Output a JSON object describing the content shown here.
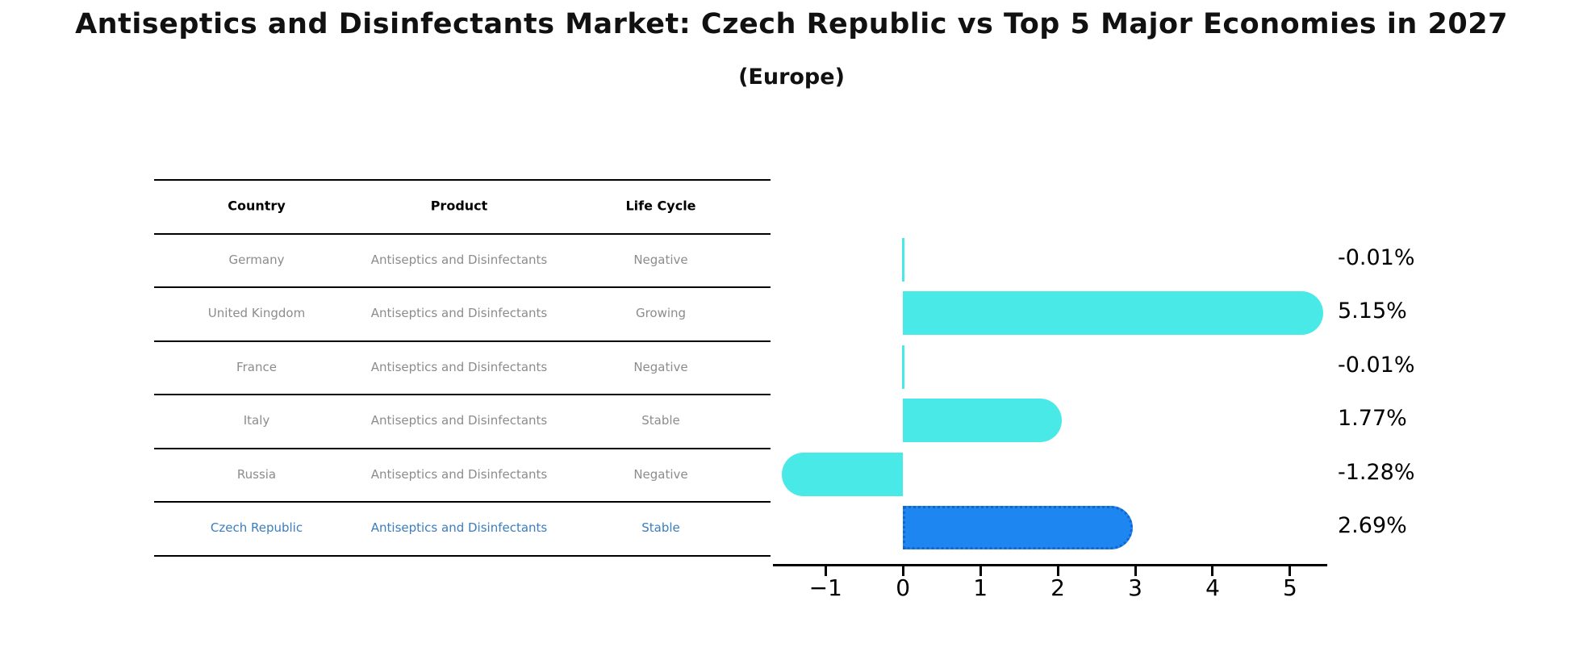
{
  "title": "Antiseptics and Disinfectants Market: Czech Republic vs Top 5 Major Economies in 2027",
  "subtitle": "(Europe)",
  "table": {
    "headers": [
      "Country",
      "Product",
      "Life Cycle"
    ],
    "rows": [
      [
        "Germany",
        "Antiseptics and Disinfectants",
        "Negative"
      ],
      [
        "United Kingdom",
        "Antiseptics and Disinfectants",
        "Growing"
      ],
      [
        "France",
        "Antiseptics and Disinfectants",
        "Negative"
      ],
      [
        "Italy",
        "Antiseptics and Disinfectants",
        "Stable"
      ],
      [
        "Russia",
        "Antiseptics and Disinfectants",
        "Negative"
      ],
      [
        "Czech Republic",
        "Antiseptics and Disinfectants",
        "Stable"
      ]
    ],
    "highlight_row": 5
  },
  "chart_data": {
    "type": "bar",
    "orientation": "horizontal",
    "categories": [
      "Germany",
      "United Kingdom",
      "France",
      "Italy",
      "Russia",
      "Czech Republic"
    ],
    "values": [
      -0.01,
      5.15,
      -0.01,
      1.77,
      -1.28,
      2.69
    ],
    "value_labels": [
      "-0.01%",
      "5.15%",
      "-0.01%",
      "1.77%",
      "-1.28%",
      "2.69%"
    ],
    "xlim": [
      -1.68,
      5.48
    ],
    "xticks": [
      -1,
      0,
      1,
      2,
      3,
      4,
      5
    ],
    "xtick_labels": [
      "−1",
      "0",
      "1",
      "2",
      "3",
      "4",
      "5"
    ],
    "highlight_index": 5,
    "grid": false,
    "legend": false,
    "title": "Antiseptics and Disinfectants Market: Czech Republic vs Top 5 Major Economies in 2027 (Europe)",
    "xlabel": "",
    "ylabel": ""
  },
  "colors": {
    "bar_default": "#48E9E7",
    "bar_highlight": "#1E86F0",
    "highlight_border": "#1266CC",
    "highlight_text": "#3A7EBF",
    "row_text": "#8C8C8C",
    "header_text": "#000000",
    "value_label": "#000000",
    "axis": "#000000"
  }
}
